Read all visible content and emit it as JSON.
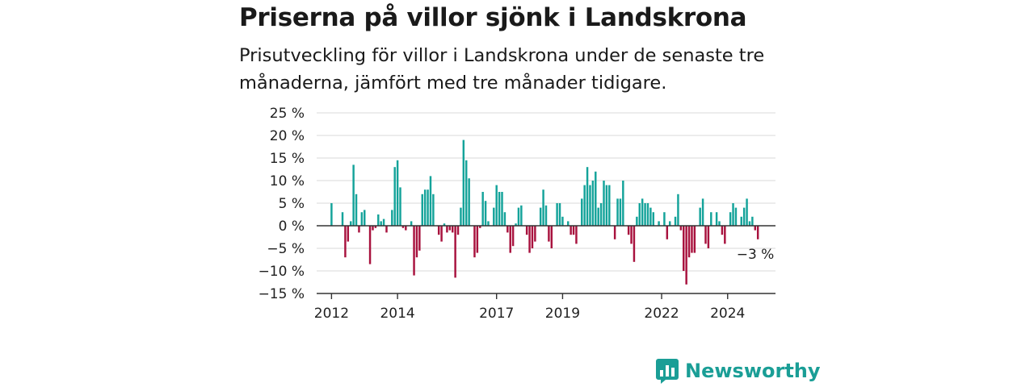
{
  "header": {
    "title": "Priserna på villor sjönk i Landskrona",
    "subtitle": "Prisutveckling för villor i Landskrona under de senaste tre månaderna, jämfört med tre månader tidigare."
  },
  "brand": {
    "name": "Newsworthy",
    "icon": "newsworthy-logo-icon",
    "color": "#1a9e96"
  },
  "colors": {
    "positive": "#14a39a",
    "negative": "#a8123e",
    "grid": "#d9d9d9",
    "axis": "#333333"
  },
  "chart_data": {
    "type": "bar",
    "title": "Priserna på villor sjönk i Landskrona",
    "xlabel": "",
    "ylabel": "",
    "ylim": [
      -15,
      25
    ],
    "y_ticks": [
      25,
      20,
      15,
      10,
      5,
      0,
      -5,
      -10,
      -15
    ],
    "y_tick_labels": [
      "25 %",
      "20 %",
      "15 %",
      "10 %",
      "5 %",
      "0 %",
      "−5 %",
      "−10 %",
      "−15 %"
    ],
    "x_range": [
      2011.55,
      2025.45
    ],
    "x_ticks": [
      2012,
      2014,
      2017,
      2019,
      2022,
      2024
    ],
    "x_tick_labels": [
      "2012",
      "2014",
      "2017",
      "2019",
      "2022",
      "2024"
    ],
    "grid": true,
    "annotation": {
      "text": "−3 %",
      "x": 2024.92,
      "y": -3
    },
    "series": [
      {
        "start_year": 2012.0,
        "step_years": 0.08333,
        "values": [
          5,
          0,
          0,
          0,
          3,
          -7,
          -3.5,
          1,
          13.5,
          7,
          -1.5,
          3,
          3.5,
          0,
          -8.5,
          -1,
          -0.5,
          2.5,
          1,
          1.5,
          -1.5,
          0,
          3.5,
          13,
          14.5,
          8.5,
          -0.5,
          -1,
          0,
          1,
          -11,
          -7,
          -5.5,
          7,
          8,
          8,
          11,
          7,
          0,
          -2,
          -3.5,
          0.5,
          -1.5,
          -1,
          -1.5,
          -11.5,
          -2,
          4,
          19,
          14.5,
          10.5,
          0,
          -7,
          -6,
          -0.5,
          7.5,
          5.5,
          1,
          0,
          4,
          9,
          7.5,
          7.5,
          3,
          -1.5,
          -6,
          -4.5,
          0.5,
          4,
          4.5,
          0,
          -2,
          -6,
          -5,
          -3.5,
          0,
          4,
          8,
          4.5,
          -3.5,
          -5,
          0,
          5,
          5,
          2,
          0,
          1,
          -2,
          -2,
          -4,
          0,
          6,
          9,
          13,
          9,
          10,
          12,
          4,
          5,
          10,
          9,
          9,
          0,
          -3,
          6,
          6,
          10,
          0,
          -2,
          -4,
          -8,
          2,
          5,
          6,
          5,
          5,
          4,
          3,
          0,
          1,
          0,
          3,
          -3,
          1,
          0,
          2,
          7,
          -1,
          -10,
          -13,
          -7,
          -6,
          -6,
          0,
          4,
          6,
          -4,
          -5,
          3,
          0,
          3,
          1,
          -2,
          -4,
          0,
          3,
          5,
          4,
          0,
          2,
          4,
          6,
          1,
          2,
          -1,
          -3
        ]
      }
    ]
  }
}
